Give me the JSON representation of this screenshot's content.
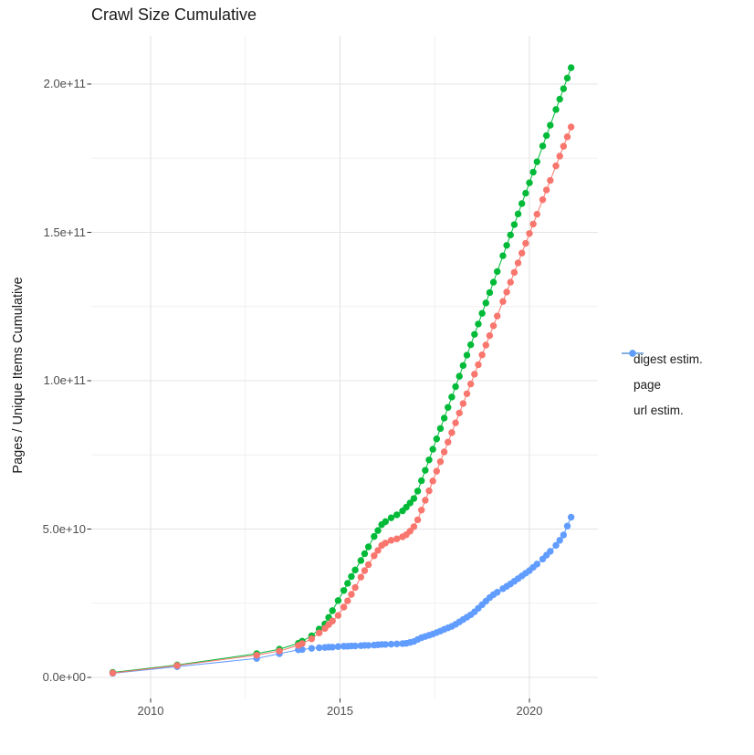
{
  "title": "Crawl Size Cumulative",
  "y_axis_label": "Pages / Unique Items Cumulative",
  "x_tick_labels": [
    "2010",
    "2015",
    "2020"
  ],
  "y_tick_labels": [
    "0.0e+00",
    "5.0e+10",
    "1.0e+11",
    "1.5e+11",
    "2.0e+11"
  ],
  "legend": {
    "items": [
      {
        "label": "digest estim.",
        "color": "#F8766D"
      },
      {
        "label": "page",
        "color": "#00BA38"
      },
      {
        "label": "url estim.",
        "color": "#619CFF"
      }
    ]
  },
  "colors": {
    "digest": "#F8766D",
    "page": "#00BA38",
    "url": "#619CFF",
    "grid_major": "#e4e4e4",
    "grid_minor": "#efefef",
    "tick_mark": "#333333",
    "tick_text": "#4d4d4d"
  },
  "chart_data": {
    "type": "scatter",
    "title": "Crawl Size Cumulative",
    "xlabel": "",
    "ylabel": "Pages / Unique Items Cumulative",
    "grid": true,
    "legend_position": "right",
    "x_unit": "year (decimal)",
    "value_unit_multiplier": 1000000000.0,
    "xlim": [
      2008.4,
      2021.7
    ],
    "ylim_billions": [
      0,
      216
    ],
    "x_major_ticks": [
      2010,
      2015,
      2020
    ],
    "x_minor_gridlines": [
      2012.5,
      2017.5
    ],
    "y_major_ticks_billions": [
      0,
      50,
      100,
      150,
      200
    ],
    "y_minor_gridlines_billions": [
      25,
      75,
      125,
      175
    ],
    "x": [
      2009.0,
      2010.7,
      2012.8,
      2013.4,
      2013.9,
      2014.0,
      2014.25,
      2014.45,
      2014.6,
      2014.7,
      2014.8,
      2014.95,
      2015.1,
      2015.2,
      2015.3,
      2015.4,
      2015.55,
      2015.65,
      2015.75,
      2015.9,
      2016.0,
      2016.1,
      2016.2,
      2016.35,
      2016.5,
      2016.65,
      2016.75,
      2016.85,
      2016.95,
      2017.05,
      2017.15,
      2017.25,
      2017.35,
      2017.45,
      2017.55,
      2017.65,
      2017.75,
      2017.85,
      2017.95,
      2018.05,
      2018.15,
      2018.25,
      2018.35,
      2018.45,
      2018.55,
      2018.65,
      2018.75,
      2018.85,
      2018.95,
      2019.05,
      2019.15,
      2019.3,
      2019.4,
      2019.5,
      2019.6,
      2019.7,
      2019.8,
      2019.9,
      2020.0,
      2020.1,
      2020.2,
      2020.35,
      2020.45,
      2020.55,
      2020.7,
      2020.8,
      2020.9,
      2021.0,
      2021.1
    ],
    "series": [
      {
        "name": "digest estim.",
        "color": "#F8766D",
        "values_billions": [
          1.5,
          4.0,
          7.5,
          8.9,
          10.8,
          11.4,
          13,
          15,
          16.5,
          17.8,
          19,
          20.9,
          23.7,
          25.8,
          28,
          30.3,
          33.8,
          36,
          38,
          41,
          42.8,
          44.5,
          45.3,
          46.2,
          46.7,
          47.4,
          48.1,
          49.3,
          50.8,
          53.1,
          56.4,
          59.7,
          62.9,
          66.2,
          69.5,
          72.7,
          76.0,
          79.3,
          82.5,
          85.8,
          89.1,
          92.3,
          95.6,
          98.9,
          102.2,
          105.4,
          108.7,
          112.0,
          115.2,
          118.5,
          121.8,
          126.7,
          129.9,
          133.2,
          136.5,
          139.7,
          143.0,
          146.3,
          149.6,
          152.8,
          156.1,
          161.0,
          164.3,
          167.5,
          172.4,
          175.7,
          179.0,
          182.2,
          185.5
        ]
      },
      {
        "name": "page",
        "color": "#00BA38",
        "values_billions": [
          1.7,
          4.2,
          8.0,
          9.5,
          11.5,
          12.2,
          14,
          16.3,
          18,
          20.2,
          22.5,
          25.9,
          29.3,
          31.7,
          34,
          36.2,
          39.4,
          41.7,
          44,
          47.5,
          49.5,
          51.5,
          52.5,
          53.8,
          54.8,
          56.1,
          57.4,
          58.8,
          60.3,
          62.8,
          66.3,
          69.8,
          73.3,
          76.9,
          80.4,
          83.9,
          87.4,
          91.0,
          94.5,
          98.0,
          101.5,
          105.1,
          108.6,
          112.1,
          115.6,
          119.1,
          122.7,
          126.2,
          129.7,
          133.2,
          136.8,
          142.1,
          145.6,
          149.1,
          152.6,
          156.2,
          159.7,
          163.2,
          166.7,
          170.3,
          173.8,
          179.1,
          182.6,
          186.1,
          191.4,
          194.9,
          198.4,
          202.0,
          205.5
        ]
      },
      {
        "name": "url estim.",
        "color": "#619CFF",
        "values_billions": [
          1.4,
          3.6,
          6.4,
          8.0,
          9.3,
          9.4,
          9.8,
          10.0,
          10.1,
          10.2,
          10.2,
          10.4,
          10.5,
          10.5,
          10.6,
          10.6,
          10.7,
          10.8,
          10.8,
          10.9,
          11.0,
          11.1,
          11.1,
          11.2,
          11.3,
          11.4,
          11.5,
          11.8,
          12.1,
          12.8,
          13.4,
          13.8,
          14.2,
          14.6,
          15.1,
          15.6,
          16.2,
          16.7,
          17.2,
          17.9,
          18.7,
          19.5,
          20.3,
          21.1,
          22.1,
          23.3,
          24.5,
          25.7,
          26.9,
          27.9,
          28.7,
          29.9,
          30.7,
          31.5,
          32.4,
          33.3,
          34.2,
          35.1,
          36,
          37.1,
          38.2,
          39.9,
          41.2,
          42.5,
          44.5,
          46.2,
          48,
          51,
          54
        ]
      }
    ]
  }
}
